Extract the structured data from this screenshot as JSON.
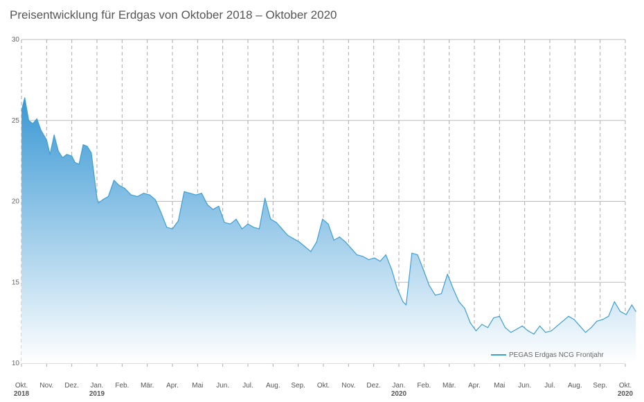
{
  "chart_data": {
    "type": "area",
    "title": "Preisentwicklung für Erdgas von Oktober 2018 – Oktober 2020",
    "xlabel": "",
    "ylabel": "",
    "ylim": [
      10,
      30
    ],
    "yticks": [
      10,
      15,
      20,
      25,
      30
    ],
    "grid": true,
    "legend_position": "bottom-right",
    "colors": {
      "line": "#3d9fd2",
      "fill_top": "#3a98d4",
      "fill_bottom": "#ffffff",
      "grid": "#bbbbbb"
    },
    "month_ticks": [
      {
        "label": "Okt.",
        "year": "2018"
      },
      {
        "label": "Nov.",
        "year": ""
      },
      {
        "label": "Dez.",
        "year": ""
      },
      {
        "label": "Jan.",
        "year": "2019"
      },
      {
        "label": "Feb.",
        "year": ""
      },
      {
        "label": "Mär.",
        "year": ""
      },
      {
        "label": "Apr.",
        "year": ""
      },
      {
        "label": "Mai",
        "year": ""
      },
      {
        "label": "Jun.",
        "year": ""
      },
      {
        "label": "Jul.",
        "year": ""
      },
      {
        "label": "Aug.",
        "year": ""
      },
      {
        "label": "Sep.",
        "year": ""
      },
      {
        "label": "Okt.",
        "year": ""
      },
      {
        "label": "Nov.",
        "year": ""
      },
      {
        "label": "Dez.",
        "year": ""
      },
      {
        "label": "Jan.",
        "year": "2020"
      },
      {
        "label": "Feb.",
        "year": ""
      },
      {
        "label": "Mär.",
        "year": ""
      },
      {
        "label": "Apr.",
        "year": ""
      },
      {
        "label": "Mai",
        "year": ""
      },
      {
        "label": "Jun.",
        "year": ""
      },
      {
        "label": "Jul.",
        "year": ""
      },
      {
        "label": "Aug.",
        "year": ""
      },
      {
        "label": "Sep.",
        "year": ""
      },
      {
        "label": "Okt.",
        "year": "2020"
      }
    ],
    "series": [
      {
        "name": "PEGAS Erdgas NCG Frontjahr",
        "x": [
          "2018-10-01",
          "2018-10-05",
          "2018-10-10",
          "2018-10-15",
          "2018-10-20",
          "2018-10-25",
          "2018-11-01",
          "2018-11-05",
          "2018-11-10",
          "2018-11-15",
          "2018-11-20",
          "2018-11-25",
          "2018-12-01",
          "2018-12-05",
          "2018-12-10",
          "2018-12-15",
          "2018-12-20",
          "2018-12-25",
          "2019-01-01",
          "2019-01-03",
          "2019-01-08",
          "2019-01-15",
          "2019-01-22",
          "2019-01-28",
          "2019-02-04",
          "2019-02-11",
          "2019-02-18",
          "2019-02-25",
          "2019-03-04",
          "2019-03-11",
          "2019-03-18",
          "2019-03-25",
          "2019-04-01",
          "2019-04-08",
          "2019-04-15",
          "2019-04-22",
          "2019-04-29",
          "2019-05-06",
          "2019-05-13",
          "2019-05-20",
          "2019-05-27",
          "2019-06-03",
          "2019-06-10",
          "2019-06-17",
          "2019-06-24",
          "2019-07-01",
          "2019-07-08",
          "2019-07-15",
          "2019-07-22",
          "2019-07-29",
          "2019-08-05",
          "2019-08-12",
          "2019-08-19",
          "2019-08-26",
          "2019-09-02",
          "2019-09-09",
          "2019-09-16",
          "2019-09-23",
          "2019-09-30",
          "2019-10-07",
          "2019-10-14",
          "2019-10-21",
          "2019-10-28",
          "2019-11-04",
          "2019-11-11",
          "2019-11-18",
          "2019-11-25",
          "2019-12-02",
          "2019-12-09",
          "2019-12-16",
          "2019-12-23",
          "2019-12-30",
          "2020-01-06",
          "2020-01-10",
          "2020-01-17",
          "2020-01-24",
          "2020-01-31",
          "2020-02-07",
          "2020-02-14",
          "2020-02-21",
          "2020-02-28",
          "2020-03-06",
          "2020-03-13",
          "2020-03-20",
          "2020-03-27",
          "2020-04-03",
          "2020-04-10",
          "2020-04-17",
          "2020-04-24",
          "2020-05-01",
          "2020-05-08",
          "2020-05-15",
          "2020-05-22",
          "2020-05-29",
          "2020-06-05",
          "2020-06-12",
          "2020-06-19",
          "2020-06-26",
          "2020-07-03",
          "2020-07-10",
          "2020-07-17",
          "2020-07-24",
          "2020-07-31",
          "2020-08-07",
          "2020-08-14",
          "2020-08-21",
          "2020-08-28",
          "2020-09-04",
          "2020-09-11",
          "2020-09-18",
          "2020-09-25",
          "2020-10-02",
          "2020-10-09",
          "2020-10-14"
        ],
        "values": [
          25.6,
          26.4,
          25.0,
          24.8,
          25.1,
          24.4,
          23.8,
          22.9,
          24.1,
          23.1,
          22.7,
          22.9,
          22.8,
          22.4,
          22.3,
          23.5,
          23.4,
          23.0,
          20.2,
          19.9,
          20.1,
          20.3,
          21.3,
          21.0,
          20.8,
          20.4,
          20.3,
          20.5,
          20.4,
          20.1,
          19.3,
          18.4,
          18.3,
          18.8,
          20.6,
          20.5,
          20.4,
          20.5,
          19.8,
          19.5,
          19.7,
          18.7,
          18.6,
          18.9,
          18.3,
          18.6,
          18.4,
          18.3,
          20.2,
          18.9,
          18.7,
          18.3,
          17.9,
          17.7,
          17.5,
          17.2,
          16.9,
          17.5,
          18.9,
          18.6,
          17.6,
          17.8,
          17.5,
          17.1,
          16.7,
          16.6,
          16.4,
          16.5,
          16.3,
          16.7,
          15.8,
          14.6,
          13.8,
          13.6,
          16.8,
          16.7,
          15.8,
          14.8,
          14.2,
          14.3,
          15.5,
          14.6,
          13.8,
          13.4,
          12.5,
          12.0,
          12.4,
          12.2,
          12.8,
          12.9,
          12.2,
          11.9,
          12.1,
          12.3,
          12.0,
          11.8,
          12.3,
          11.9,
          12.0,
          12.3,
          12.6,
          12.9,
          12.7,
          12.3,
          11.9,
          12.2,
          12.6,
          12.7,
          12.9,
          13.8,
          13.2,
          13.0,
          13.6,
          13.2
        ]
      }
    ]
  }
}
